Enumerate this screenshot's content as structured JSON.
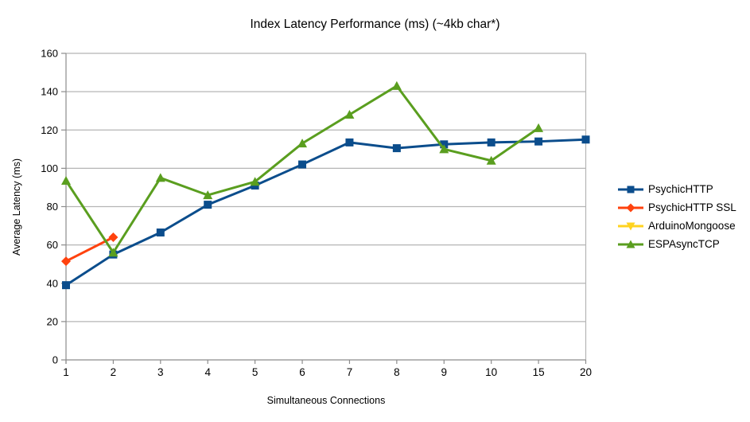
{
  "chart_data": {
    "type": "line",
    "title": "Index Latency Performance (ms) (~4kb char*)",
    "xlabel": "Simultaneous Connections",
    "ylabel": "Average Latency (ms)",
    "categories": [
      "1",
      "2",
      "3",
      "4",
      "5",
      "6",
      "7",
      "8",
      "9",
      "10",
      "15",
      "20"
    ],
    "ylim": [
      0,
      160
    ],
    "ytick_step": 20,
    "grid": true,
    "legend_position": "right",
    "axis_color": "#8c8c8c",
    "grid_color": "#b5b5b5",
    "series": [
      {
        "name": "PsychicHTTP",
        "color": "#0b4d8c",
        "marker": "square",
        "values": [
          39,
          55,
          66.5,
          81,
          91,
          102,
          113.5,
          110.5,
          112.5,
          113.5,
          114,
          115
        ]
      },
      {
        "name": "PsychicHTTP SSL",
        "color": "#ff420e",
        "marker": "diamond",
        "values": [
          51.5,
          64,
          null,
          null,
          null,
          null,
          null,
          null,
          null,
          null,
          null,
          null
        ]
      },
      {
        "name": "ArduinoMongoose",
        "color": "#ffd320",
        "marker": "triangle-down",
        "values": [
          null,
          null,
          null,
          null,
          null,
          null,
          null,
          null,
          null,
          null,
          null,
          null
        ]
      },
      {
        "name": "ESPAsyncTCP",
        "color": "#5a9e1f",
        "marker": "triangle-up",
        "values": [
          93.5,
          56,
          95,
          86,
          93,
          113,
          128,
          143,
          110,
          104,
          121,
          null
        ]
      }
    ]
  }
}
